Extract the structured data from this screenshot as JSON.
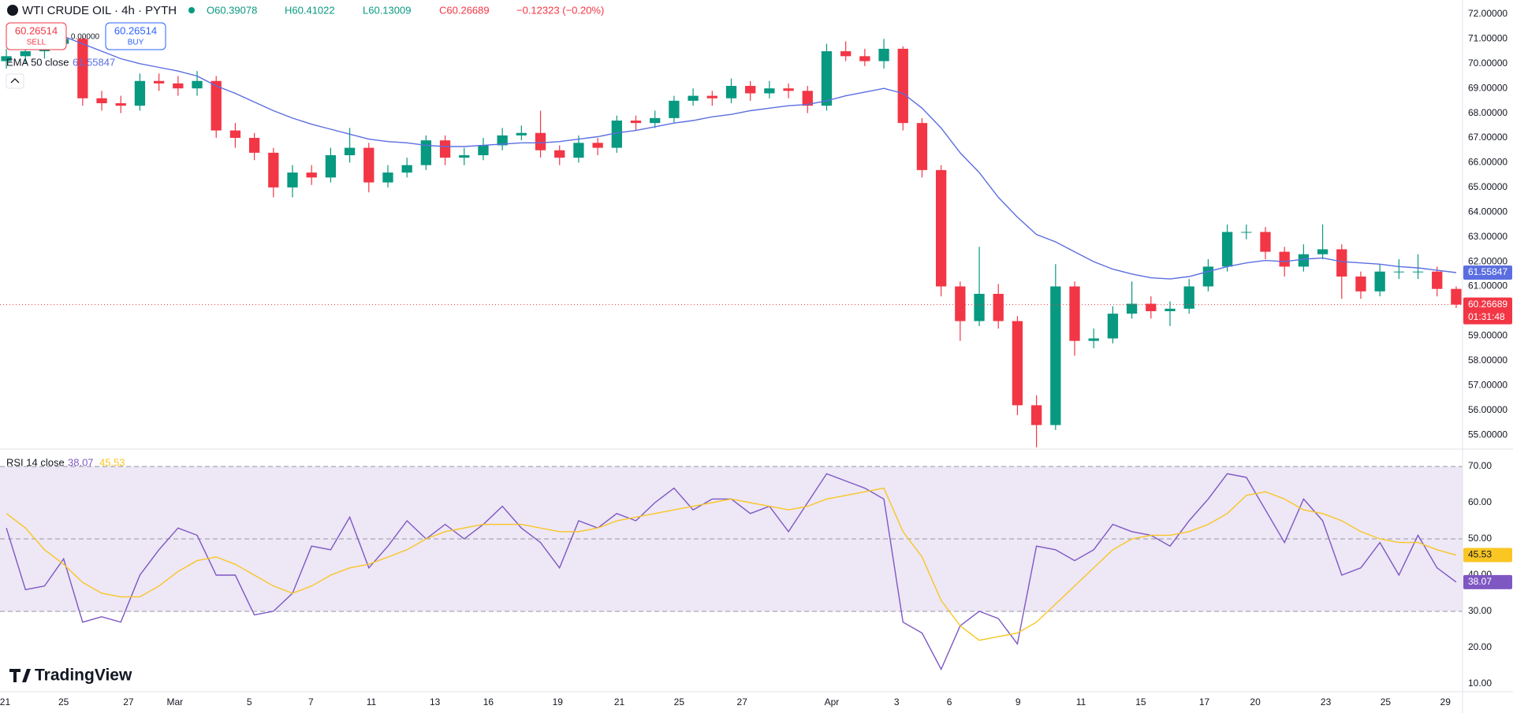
{
  "header": {
    "symbol": "WTI CRUDE OIL · 4h · PYTH",
    "open": "O60.39078",
    "high": "H60.41022",
    "low": "L60.13009",
    "close": "C60.26689",
    "change": "−0.12323 (−0.20%)"
  },
  "trade": {
    "sell_price": "60.26514",
    "sell": "SELL",
    "buy_price": "60.26514",
    "buy": "BUY",
    "spread": "0.00000"
  },
  "countdown": "01:31:48",
  "brand": "TradingView",
  "chart_data": [
    {
      "type": "candlestick",
      "up_color": "#089981",
      "down_color": "#f23645",
      "xlim": [
        0,
        230
      ],
      "ylim": [
        54.43,
        72.57
      ],
      "grid": true,
      "yticks": [
        {
          "value": 55,
          "label": "55.00000"
        },
        {
          "value": 56,
          "label": "56.00000"
        },
        {
          "value": 57,
          "label": "57.00000"
        },
        {
          "value": 58,
          "label": "58.00000"
        },
        {
          "value": 59,
          "label": "59.00000"
        },
        {
          "value": 60,
          "label": "60.00000"
        },
        {
          "value": 61,
          "label": "61.00000"
        },
        {
          "value": 62,
          "label": "62.00000"
        },
        {
          "value": 63,
          "label": "63.00000"
        },
        {
          "value": 64,
          "label": "64.00000"
        },
        {
          "value": 65,
          "label": "65.00000"
        },
        {
          "value": 66,
          "label": "66.00000"
        },
        {
          "value": 67,
          "label": "67.00000"
        },
        {
          "value": 68,
          "label": "68.00000"
        },
        {
          "value": 69,
          "label": "69.00000"
        },
        {
          "value": 70,
          "label": "70.00000"
        },
        {
          "value": 71,
          "label": "71.00000"
        },
        {
          "value": 72,
          "label": "72.00000"
        }
      ],
      "xticks": [
        {
          "value": 0.8,
          "label": "21"
        },
        {
          "value": 10,
          "label": "25"
        },
        {
          "value": 20.2,
          "label": "27"
        },
        {
          "value": 27.5,
          "label": "Mar"
        },
        {
          "value": 39.2,
          "label": "5"
        },
        {
          "value": 48.9,
          "label": "7"
        },
        {
          "value": 58.4,
          "label": "11"
        },
        {
          "value": 68.4,
          "label": "13"
        },
        {
          "value": 76.8,
          "label": "16"
        },
        {
          "value": 87.7,
          "label": "19"
        },
        {
          "value": 97.4,
          "label": "21"
        },
        {
          "value": 106.8,
          "label": "25"
        },
        {
          "value": 116.7,
          "label": "27"
        },
        {
          "value": 130.8,
          "label": "Apr"
        },
        {
          "value": 141,
          "label": "3"
        },
        {
          "value": 149.3,
          "label": "6"
        },
        {
          "value": 160.1,
          "label": "9"
        },
        {
          "value": 170,
          "label": "11"
        },
        {
          "value": 179.4,
          "label": "15"
        },
        {
          "value": 189.4,
          "label": "17"
        },
        {
          "value": 197.4,
          "label": "20"
        },
        {
          "value": 208.5,
          "label": "23"
        },
        {
          "value": 217.9,
          "label": "25"
        },
        {
          "value": 227.3,
          "label": "29"
        }
      ],
      "x": [
        1,
        4,
        7,
        10,
        13,
        16,
        19,
        22,
        25,
        28,
        31,
        34,
        37,
        40,
        43,
        46,
        49,
        52,
        55,
        58,
        61,
        64,
        67,
        70,
        73,
        76,
        79,
        82,
        85,
        88,
        91,
        94,
        97,
        100,
        103,
        106,
        109,
        112,
        115,
        118,
        121,
        124,
        127,
        130,
        133,
        136,
        139,
        142,
        145,
        148,
        151,
        154,
        157,
        160,
        163,
        166,
        169,
        172,
        175,
        178,
        181,
        184,
        187,
        190,
        193,
        196,
        199,
        202,
        205,
        208,
        211,
        214,
        217,
        220,
        223,
        226,
        229
      ],
      "open": [
        70.1,
        70.3,
        70.5,
        70.8,
        71.0,
        68.6,
        68.4,
        68.3,
        69.3,
        69.2,
        69.0,
        69.3,
        67.3,
        67.0,
        66.4,
        65.0,
        65.6,
        65.4,
        66.3,
        66.6,
        65.2,
        65.6,
        65.9,
        66.9,
        66.2,
        66.3,
        66.7,
        67.1,
        67.2,
        66.5,
        66.2,
        66.8,
        66.6,
        67.7,
        67.6,
        67.8,
        68.5,
        68.7,
        68.6,
        69.1,
        68.8,
        69.0,
        68.9,
        68.3,
        70.5,
        70.3,
        70.1,
        70.6,
        67.6,
        65.7,
        61.0,
        59.6,
        60.7,
        59.6,
        56.2,
        55.4,
        61.0,
        58.8,
        58.9,
        59.9,
        60.3,
        60.0,
        60.1,
        61.0,
        61.8,
        63.2,
        63.2,
        62.4,
        61.8,
        62.3,
        62.5,
        61.4,
        60.8,
        61.6,
        61.6,
        61.6,
        60.9
      ],
      "high": [
        70.6,
        70.8,
        71.1,
        71.4,
        71.1,
        68.9,
        68.7,
        69.6,
        69.6,
        69.5,
        69.7,
        69.5,
        67.6,
        67.2,
        66.6,
        65.9,
        65.9,
        66.6,
        67.4,
        66.8,
        65.9,
        66.2,
        67.1,
        67.1,
        66.6,
        67.0,
        67.4,
        67.5,
        68.1,
        66.7,
        67.1,
        67.0,
        67.9,
        67.9,
        68.1,
        68.7,
        69.0,
        68.9,
        69.4,
        69.3,
        69.3,
        69.2,
        69.1,
        70.8,
        70.9,
        70.6,
        71.0,
        70.7,
        67.8,
        65.9,
        61.2,
        62.6,
        61.1,
        59.8,
        56.6,
        61.9,
        61.2,
        59.3,
        60.2,
        61.2,
        60.6,
        60.4,
        61.3,
        62.1,
        63.5,
        63.5,
        63.4,
        62.6,
        62.7,
        63.5,
        62.7,
        61.6,
        61.9,
        62.1,
        62.3,
        61.8,
        61.0
      ],
      "low": [
        69.8,
        70.0,
        70.2,
        70.6,
        68.3,
        68.1,
        68.0,
        68.1,
        68.9,
        68.7,
        68.7,
        67.0,
        66.6,
        66.1,
        64.6,
        64.6,
        65.1,
        65.2,
        66.0,
        64.8,
        65.0,
        65.4,
        65.7,
        65.9,
        65.9,
        66.1,
        66.5,
        66.9,
        66.2,
        65.9,
        66.0,
        66.3,
        66.4,
        67.3,
        67.4,
        67.6,
        68.3,
        68.3,
        68.4,
        68.5,
        68.6,
        68.6,
        68.0,
        68.1,
        70.1,
        69.9,
        69.8,
        67.3,
        65.4,
        60.6,
        58.8,
        59.4,
        59.3,
        55.8,
        54.5,
        55.2,
        58.2,
        58.5,
        58.7,
        59.7,
        59.7,
        59.4,
        59.9,
        60.8,
        61.6,
        62.9,
        62.1,
        61.4,
        61.6,
        62.1,
        60.5,
        60.5,
        60.6,
        61.3,
        61.3,
        60.6,
        60.13
      ],
      "close": [
        70.3,
        70.5,
        70.8,
        71.0,
        68.6,
        68.4,
        68.3,
        69.3,
        69.2,
        69.0,
        69.3,
        67.3,
        67.0,
        66.4,
        65.0,
        65.6,
        65.4,
        66.3,
        66.6,
        65.2,
        65.6,
        65.9,
        66.9,
        66.2,
        66.3,
        66.7,
        67.1,
        67.2,
        66.5,
        66.2,
        66.8,
        66.6,
        67.7,
        67.6,
        67.8,
        68.5,
        68.7,
        68.6,
        69.1,
        68.8,
        69.0,
        68.9,
        68.3,
        70.5,
        70.3,
        70.1,
        70.6,
        67.6,
        65.7,
        61.0,
        59.6,
        60.7,
        59.6,
        56.2,
        55.4,
        61.0,
        58.8,
        58.9,
        59.9,
        60.3,
        60.0,
        60.1,
        61.0,
        61.8,
        63.2,
        63.2,
        62.4,
        61.8,
        62.3,
        62.5,
        61.4,
        60.8,
        61.6,
        61.6,
        61.6,
        60.9,
        60.26689
      ],
      "series": [
        {
          "name": "EMA 50 close",
          "color": "#5b6ee1",
          "values": [
            null,
            null,
            null,
            71.1,
            70.8,
            70.5,
            70.2,
            70.0,
            69.85,
            69.7,
            69.5,
            69.1,
            68.8,
            68.45,
            68.1,
            67.8,
            67.55,
            67.35,
            67.15,
            66.95,
            66.85,
            66.8,
            66.7,
            66.65,
            66.65,
            66.7,
            66.75,
            66.8,
            66.8,
            66.85,
            66.95,
            67.05,
            67.2,
            67.3,
            67.45,
            67.6,
            67.7,
            67.85,
            67.95,
            68.1,
            68.2,
            68.3,
            68.35,
            68.5,
            68.7,
            68.85,
            69.0,
            68.8,
            68.2,
            67.4,
            66.4,
            65.6,
            64.6,
            63.8,
            63.1,
            62.8,
            62.4,
            62.0,
            61.7,
            61.5,
            61.35,
            61.3,
            61.4,
            61.6,
            61.8,
            61.95,
            62.05,
            62.0,
            62.1,
            62.15,
            62.0,
            61.95,
            61.9,
            61.8,
            61.75,
            61.65,
            61.55847
          ]
        }
      ]
    },
    {
      "type": "line",
      "legend": "RSI 14 close",
      "band_color": "#ede7f6",
      "grid": true,
      "xlim": [
        0,
        230
      ],
      "ylim": [
        7.8,
        74.8
      ],
      "levels": [
        70,
        50,
        30
      ],
      "yticks": [
        {
          "value": 10,
          "label": "10.00"
        },
        {
          "value": 20,
          "label": "20.00"
        },
        {
          "value": 30,
          "label": "30.00"
        },
        {
          "value": 40,
          "label": "40.00"
        },
        {
          "value": 50,
          "label": "50.00"
        },
        {
          "value": 60,
          "label": "60.00"
        },
        {
          "value": 70,
          "label": "70.00"
        }
      ],
      "x": [
        1,
        4,
        7,
        10,
        13,
        16,
        19,
        22,
        25,
        28,
        31,
        34,
        37,
        40,
        43,
        46,
        49,
        52,
        55,
        58,
        61,
        64,
        67,
        70,
        73,
        76,
        79,
        82,
        85,
        88,
        91,
        94,
        97,
        100,
        103,
        106,
        109,
        112,
        115,
        118,
        121,
        124,
        127,
        130,
        133,
        136,
        139,
        142,
        145,
        148,
        151,
        154,
        157,
        160,
        163,
        166,
        169,
        172,
        175,
        178,
        181,
        184,
        187,
        190,
        193,
        196,
        199,
        202,
        205,
        208,
        211,
        214,
        217,
        220,
        223,
        226,
        229
      ],
      "series": [
        {
          "name": "RSI 14 close",
          "color": "#7e57c2",
          "values": [
            53,
            36,
            37,
            44.5,
            27,
            28.5,
            27,
            40,
            47,
            53,
            51,
            40,
            40,
            29,
            30,
            35,
            48,
            47,
            56,
            42,
            48,
            55,
            50,
            54,
            50,
            54,
            59,
            53,
            49,
            42,
            55,
            53,
            57,
            55,
            60,
            64,
            58,
            61,
            61,
            57,
            59,
            52,
            60,
            68,
            66,
            64,
            61,
            27,
            24,
            14,
            26,
            30,
            28,
            21,
            48,
            47,
            44,
            47,
            54,
            52,
            51,
            48,
            55,
            61,
            68,
            67,
            58,
            49,
            61,
            55,
            40,
            42,
            49,
            40,
            51,
            42,
            38.07
          ]
        },
        {
          "color": "#f9c623",
          "values": [
            57,
            53,
            47,
            43,
            38,
            35,
            34,
            34,
            37,
            41,
            44,
            45,
            43,
            40,
            37,
            35,
            37,
            40,
            42,
            43,
            45,
            47,
            50,
            52,
            53,
            54,
            54,
            54,
            53,
            52,
            52,
            53,
            55,
            56,
            57,
            58,
            59,
            60,
            61,
            60,
            59,
            58,
            59,
            61,
            62,
            63,
            64,
            52,
            45,
            33,
            26,
            22,
            23,
            24,
            27,
            32,
            37,
            42,
            47,
            50,
            51,
            51,
            52,
            54,
            57,
            62,
            63,
            61,
            58,
            57,
            55,
            52,
            50,
            49,
            49,
            47,
            45.53
          ]
        }
      ]
    }
  ]
}
